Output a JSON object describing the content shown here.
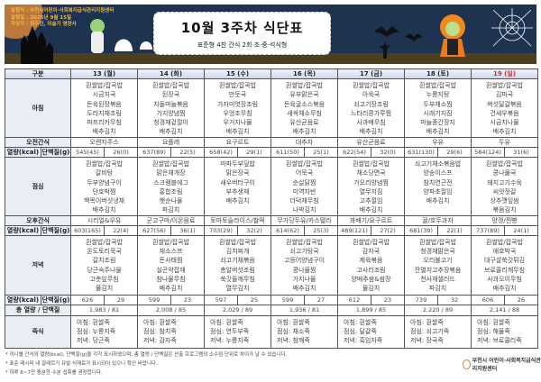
{
  "header": {
    "issuer": "발행처 : 부천시어린이·사회복지급식관리지원센터",
    "issue_date": "발행일 : 2025년 9월 15일",
    "author": "작성자 : 최주진, 이슬기 영양사",
    "title": "10월 3주차 식단표",
    "subtitle": "표준형 4찬 간식 2회 조·중·석식형"
  },
  "labels": {
    "category": "구분",
    "breakfast": "아침",
    "am_snack": "오전간식",
    "kcal": "열량(kcal)",
    "protein": "단백질(g)",
    "lunch": "점심",
    "pm_snack": "오후간식",
    "dinner": "저녁",
    "total": "총 열량 / 단백질",
    "porridge": "죽식"
  },
  "colors": {
    "sunday": "#e0282a",
    "header_bg": "#cdd7ea",
    "banner": "#1d3350",
    "label_bg": "#e9edf5"
  },
  "days": [
    {
      "date": "13 (월)",
      "breakfast": [
        "흰쌀밥/잡곡밥",
        "시금치국",
        "돈육된장볶음",
        "도라지채조림",
        "파프리카무침",
        "배추김치"
      ],
      "am_snack": "오렌지주스",
      "am_kcal": "545(45)",
      "am_protein": "26(0)",
      "lunch": [
        "흰쌀밥/잡곡밥",
        "갈비탕",
        "두부양념구이",
        "단호박찜",
        "백목이버섯냉채",
        "배추김치"
      ],
      "pm_snack": "시리얼&우유",
      "pm_kcal": "603(165)",
      "pm_protein": "22(4)",
      "dinner": [
        "흰쌀밥/잡곡밥",
        "온도토리묵국",
        "갈치조림",
        "당근숙주나물",
        "고춧잎무침",
        "물김치"
      ],
      "dn_kcal": "626",
      "dn_protein": "29",
      "total": "1,983  /  81",
      "porridge": [
        "아침: 흰쌀죽",
        "점심: 누룽지죽",
        "저녁: 당근죽"
      ]
    },
    {
      "date": "14 (화)",
      "breakfast": [
        "흰쌀밥/잡곡밥",
        "된장국",
        "차돌마늘볶음",
        "가지양념찜",
        "청경채겉절이",
        "배추김치"
      ],
      "am_snack": "요플레",
      "am_kcal": "637(89)",
      "am_protein": "22(5)",
      "lunch": [
        "흰쌀밥/잡곡밥",
        "맑은채개장",
        "스크램블에그",
        "홍합조림",
        "햇순나물",
        "파김치"
      ],
      "pm_snack": "군고구마/이온음료",
      "pm_kcal": "627(56)",
      "pm_protein": "36(1)",
      "dinner": [
        "흰쌀밥/잡곡밥",
        "채소스프",
        "돈사태찜",
        "실곤약잡채",
        "참나물무침",
        "배추김치"
      ],
      "dn_kcal": "599",
      "dn_protein": "23",
      "total": "2,008  /  85",
      "porridge": [
        "아침: 흰쌀죽",
        "점심: 참치죽",
        "저녁: 감자죽"
      ]
    },
    {
      "date": "15 (수)",
      "breakfast": [
        "흰쌀밥/잡곡밥",
        "만둣국",
        "가자미엿장조림",
        "우엉조무침",
        "우거지나물",
        "배추김치"
      ],
      "am_snack": "요구르트",
      "am_kcal": "658(42)",
      "am_protein": "29(1)",
      "lunch": [
        "마파두부덮밥",
        "맑은장국",
        "새우버터구이",
        "부추생채",
        "배추김치"
      ],
      "pm_snack": "토마토슬라이스/찰떡",
      "pm_kcal": "703(29)",
      "pm_protein": "32(2)",
      "dinner": [
        "흰쌀밥/잡곡밥",
        "김치찌개",
        "쇠고기채볶음",
        "총알버섯조림",
        "쑥갓들깨무침",
        "열무김치"
      ],
      "dn_kcal": "597",
      "dn_protein": "25",
      "total": "2,029  /  89",
      "porridge": [
        "아침: 흰쌀죽",
        "점심: 연두부죽",
        "저녁: 누룽지죽"
      ]
    },
    {
      "date": "16 (목)",
      "breakfast": [
        "흰쌀밥/잡곡밥",
        "유부맑은국",
        "돈육굴소스볶음",
        "새싹채소무침",
        "유산균음료",
        "배추김치"
      ],
      "am_snack": "대추차",
      "am_kcal": "611(50)",
      "am_protein": "25(1)",
      "lunch": [
        "흰쌀밥/잡곡밥",
        "어묵국",
        "순살닭찜",
        "미역자반",
        "더덕채무침",
        "나박김치"
      ],
      "pm_snack": "무가당두유/카스텔라",
      "pm_kcal": "614(62)",
      "pm_protein": "25(3)",
      "dinner": [
        "흰쌀밥/잡곡밥",
        "쇠고기탕국",
        "고등어양념구이",
        "콩나물찜",
        "가지나물",
        "배추김치"
      ],
      "dn_kcal": "599",
      "dn_protein": "27",
      "total": "1,936  /  81",
      "porridge": [
        "아침: 흰쌀죽",
        "점심: 채소죽",
        "저녁: 참깨죽"
      ]
    },
    {
      "date": "17 (금)",
      "breakfast": [
        "흰쌀밥/잡곡밥",
        "아욱국",
        "쇠고기장조림",
        "느타리콩가루찜",
        "사과배무침",
        "배추김치"
      ],
      "am_snack": "유산균음료",
      "am_kcal": "622(54)",
      "am_protein": "32(0)",
      "lunch": [
        "흰쌀밥/잡곡밥",
        "채소당면국",
        "가오리양념찜",
        "열무지짐",
        "고추절임",
        "배추김치"
      ],
      "pm_snack": "꽈배기/요구르트",
      "pm_kcal": "489(121)",
      "pm_protein": "27(2)",
      "dinner": [
        "흰쌀밥/잡곡밥",
        "감자국",
        "제육볶음",
        "고사리조림",
        "양배추쌈&쌈장",
        "물김치"
      ],
      "dn_kcal": "612",
      "dn_protein": "23",
      "total": "1,899  /  85",
      "porridge": [
        "아침: 흰쌀죽",
        "점심: 달걀죽",
        "저녁: 흑임자죽"
      ]
    },
    {
      "date": "18 (토)",
      "breakfast": [
        "흰쌀밥/잡곡밥",
        "누룽지탕",
        "두부채소찜",
        "시래기지짐",
        "마늘종간장지",
        "배추김치"
      ],
      "am_snack": "우유",
      "am_kcal": "631(130)",
      "am_protein": "29(6)",
      "lunch": [
        "쇠고기채소볶음밥",
        "양송이스프",
        "참치연근전",
        "양파초절임",
        "배추김치"
      ],
      "pm_snack": "귤/호두과자",
      "pm_kcal": "681(39)",
      "pm_protein": "22(1)",
      "dinner": [
        "흰쌀밥/잡곡밥",
        "청경채맑은국",
        "오리불고기",
        "잔멸치고추장볶음",
        "천사채샐러드",
        "파김치"
      ],
      "dn_kcal": "739",
      "dn_protein": "32",
      "total": "2,220  /  89",
      "porridge": [
        "아침: 흰쌀죽",
        "점심: 쇠고기죽",
        "저녁: 장국죽"
      ]
    },
    {
      "date": "19 (일)",
      "breakfast": [
        "흰쌀밥/잡곡밥",
        "김파국",
        "버섯달걀볶음",
        "건새우볶음",
        "시금치나물",
        "배추김치"
      ],
      "am_snack": "두유",
      "am_kcal": "584(124)",
      "am_protein": "31(6)",
      "lunch": [
        "흰쌀밥/잡곡밥",
        "콩나물국",
        "돼지고기수육",
        "씨앗젓갈",
        "상추깻잎쌈",
        "볶음김치"
      ],
      "pm_snack": "양갱/찐빵",
      "pm_kcal": "737(89)",
      "pm_protein": "24(1)",
      "dinner": [
        "흰쌀밥/잡곡밥",
        "애호박국",
        "대구살쑥갓튀김",
        "브로콜리깨무침",
        "사과오이무침",
        "배추김치"
      ],
      "dn_kcal": "606",
      "dn_protein": "26",
      "total": "2,141  /  88",
      "porridge": [
        "아침: 흰쌀죽",
        "점심: 해물죽",
        "저녁: 브로콜리죽"
      ]
    }
  ],
  "footnotes": [
    "* 끼니별 간식의 열량(kcal), 단백질(g)을 각각 표시하였으며, 총 열량 / 단백질은 산출 프로그램의 소수점 단위로 차이가 날 수 있습니다.",
    "* 표준 레시피 내 알레르기 유발 식재료가 표시되어 있으니 확인 바랍니다.",
    "* 하루 6~7잔 충분한 수분 섭취를 권장합니다."
  ],
  "logo_text": "부천시 어린이·사회복지급식관리지원센터"
}
